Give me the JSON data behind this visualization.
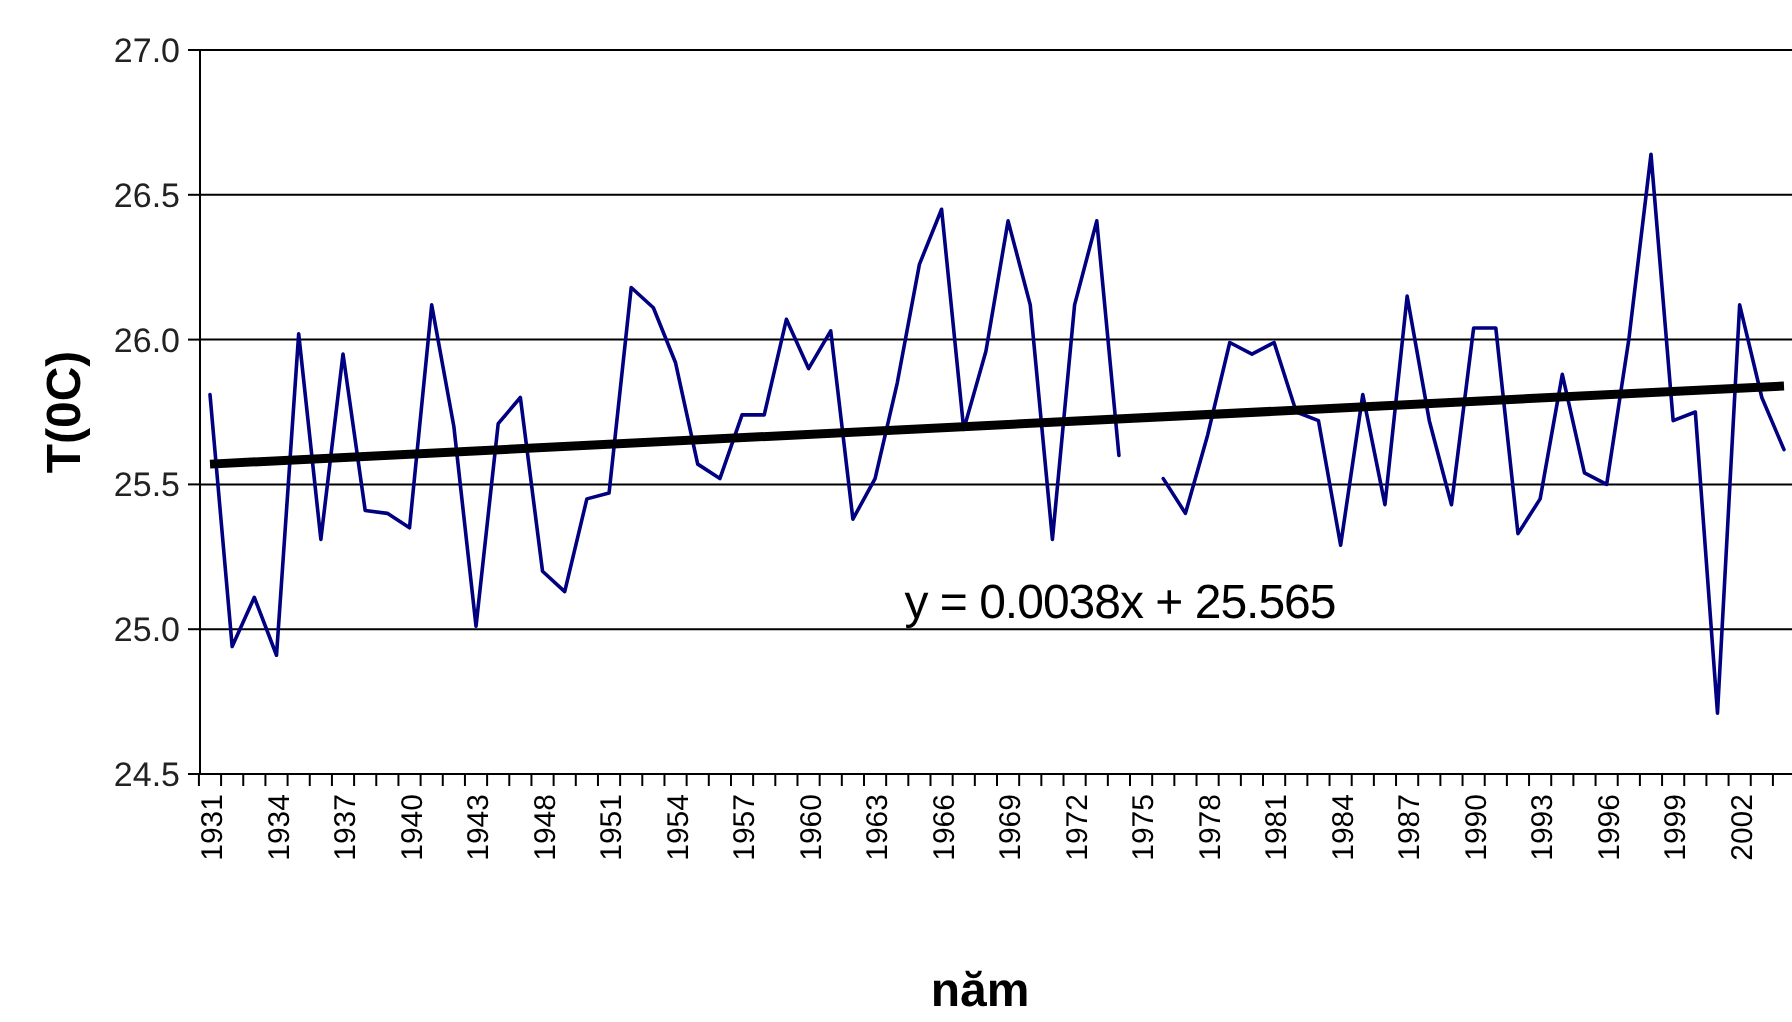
{
  "chart_data": {
    "type": "line",
    "xlabel": "năm",
    "ylabel": "T(0C)",
    "categories": [
      "1931",
      null,
      null,
      "1934",
      null,
      null,
      "1937",
      null,
      null,
      "1940",
      null,
      null,
      "1943",
      null,
      null,
      "1948",
      null,
      null,
      "1951",
      null,
      null,
      "1954",
      null,
      null,
      "1957",
      null,
      null,
      "1960",
      null,
      null,
      "1963",
      null,
      null,
      "1966",
      null,
      null,
      "1969",
      null,
      null,
      "1972",
      null,
      null,
      "1975",
      null,
      null,
      "1978",
      null,
      null,
      "1981",
      null,
      null,
      "1984",
      null,
      null,
      "1987",
      null,
      null,
      "1990",
      null,
      null,
      "1993",
      null,
      null,
      "1996",
      null,
      null,
      "1999",
      null,
      null,
      "2002",
      null,
      null
    ],
    "series": [
      {
        "color": "#000080",
        "values": [
          25.81,
          24.94,
          25.11,
          24.91,
          26.02,
          25.31,
          25.95,
          25.41,
          25.4,
          25.35,
          26.12,
          25.7,
          25.01,
          25.71,
          25.8,
          25.2,
          25.13,
          25.45,
          25.47,
          26.18,
          26.11,
          25.92,
          25.57,
          25.52,
          25.74,
          25.74,
          26.07,
          25.9,
          26.03,
          25.38,
          25.52,
          25.85,
          26.26,
          26.45,
          25.69,
          25.96,
          26.41,
          26.12,
          25.31,
          26.12,
          26.41,
          25.6,
          null,
          25.52,
          25.4,
          25.67,
          25.99,
          25.95,
          25.99,
          25.75,
          25.72,
          25.29,
          25.81,
          25.43,
          26.15,
          25.72,
          25.43,
          26.04,
          26.04,
          25.33,
          25.45,
          25.88,
          25.54,
          25.5,
          26.0,
          26.64,
          25.72,
          25.75,
          24.71,
          26.12,
          25.8,
          25.62
        ]
      },
      {
        "type": "line",
        "color": "#000000",
        "values": [
          25.57,
          null,
          null,
          null,
          null,
          null,
          null,
          null,
          null,
          null,
          null,
          null,
          null,
          null,
          null,
          null,
          null,
          null,
          null,
          null,
          null,
          null,
          null,
          null,
          null,
          null,
          null,
          null,
          null,
          null,
          null,
          null,
          null,
          null,
          null,
          null,
          null,
          null,
          null,
          null,
          null,
          null,
          null,
          null,
          null,
          null,
          null,
          null,
          null,
          null,
          null,
          null,
          null,
          null,
          null,
          null,
          null,
          null,
          null,
          null,
          null,
          null,
          null,
          null,
          null,
          null,
          null,
          null,
          null,
          null,
          null,
          25.84
        ]
      }
    ],
    "annotations": [
      "y = 0.0038x + 25.565"
    ],
    "ylim": [
      24.5,
      27.0
    ],
    "yticks": [
      {
        "value": 24.5,
        "label": "24.5"
      },
      {
        "value": 25,
        "label": "25.0"
      },
      {
        "value": 25.5,
        "label": "25.5"
      },
      {
        "value": 26,
        "label": "26.0"
      },
      {
        "value": 26.5,
        "label": "26.5"
      },
      {
        "value": 27,
        "label": "27.0"
      }
    ],
    "grid": "y"
  }
}
